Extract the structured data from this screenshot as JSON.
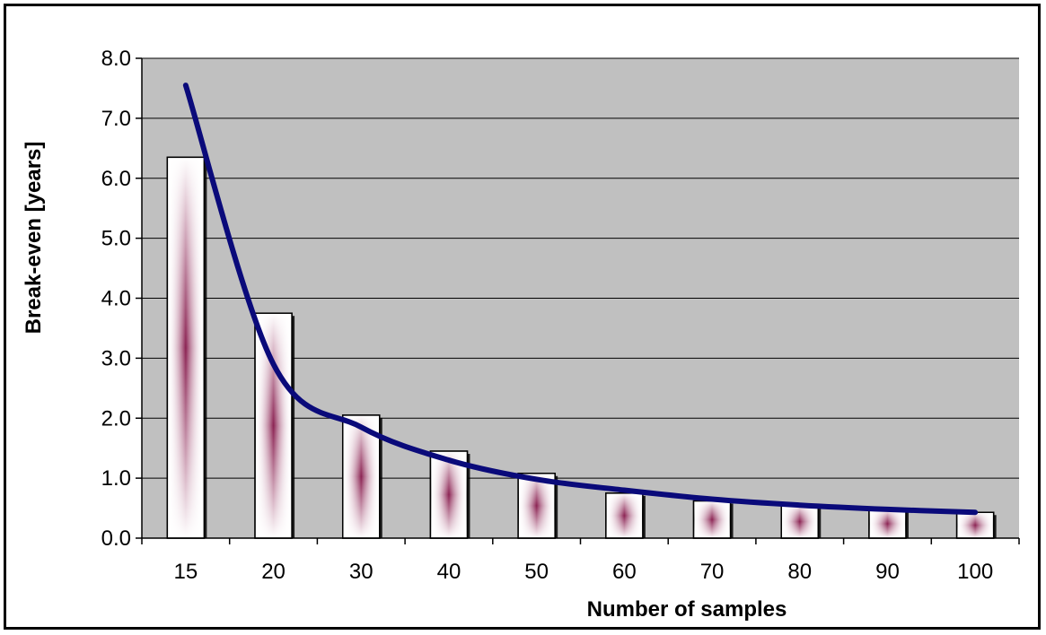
{
  "chart_data": {
    "type": "bar",
    "title": "",
    "xlabel": "Number of samples",
    "ylabel": "Break-even [years]",
    "categories": [
      "15",
      "20",
      "30",
      "40",
      "50",
      "60",
      "70",
      "80",
      "90",
      "100"
    ],
    "series": [
      {
        "type": "bar",
        "values": [
          6.35,
          3.75,
          2.05,
          1.45,
          1.08,
          0.75,
          0.62,
          0.55,
          0.48,
          0.43
        ]
      },
      {
        "type": "line",
        "values": [
          7.55,
          2.9,
          1.85,
          1.3,
          0.98,
          0.8,
          0.65,
          0.55,
          0.48,
          0.43
        ]
      }
    ],
    "yticks": [
      "0.0",
      "1.0",
      "2.0",
      "3.0",
      "4.0",
      "5.0",
      "6.0",
      "7.0",
      "8.0"
    ],
    "ylim": [
      0,
      8
    ],
    "grid": true,
    "legend": "none",
    "colors": {
      "plot_background": "#c0c0c0",
      "bar_fill": "#ffffff",
      "bar_gradient": "#8b2252",
      "line": "#0a0a7a",
      "gridline": "#000000"
    }
  }
}
